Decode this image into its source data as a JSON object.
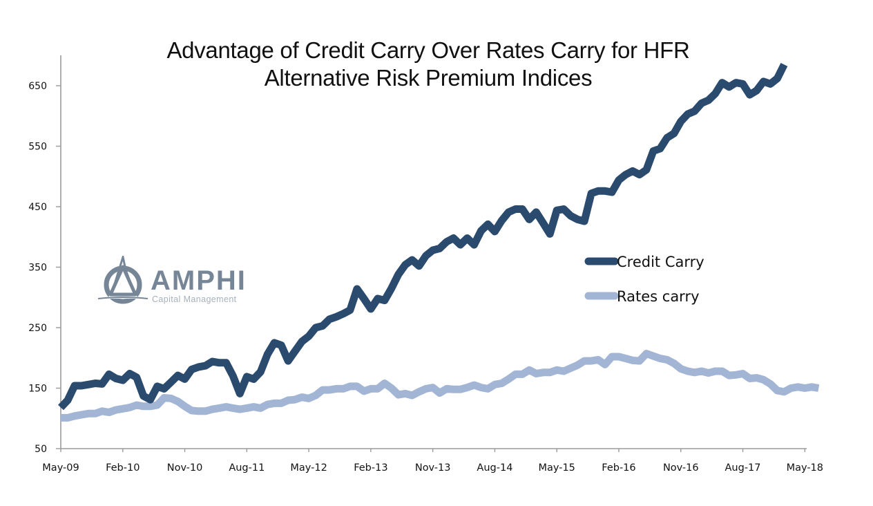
{
  "chart_data": {
    "type": "line",
    "title": "Advantage of Credit Carry Over Rates Carry for HFR Alternative Risk Premium Indices",
    "title_lines": [
      "Advantage of Credit Carry Over Rates Carry for HFR",
      "Alternative Risk Premium Indices"
    ],
    "xlabel": "",
    "ylabel": "",
    "ylim": [
      50,
      700
    ],
    "y_ticks": [
      50,
      150,
      250,
      350,
      450,
      550,
      650
    ],
    "x_start": "May-09",
    "x_unit": "month",
    "x_ticks": [
      {
        "label": "May-09",
        "month_index": 0
      },
      {
        "label": "Feb-10",
        "month_index": 9
      },
      {
        "label": "Nov-10",
        "month_index": 18
      },
      {
        "label": "Aug-11",
        "month_index": 27
      },
      {
        "label": "May-12",
        "month_index": 36
      },
      {
        "label": "Feb-13",
        "month_index": 45
      },
      {
        "label": "Nov-13",
        "month_index": 54
      },
      {
        "label": "Aug-14",
        "month_index": 63
      },
      {
        "label": "May-15",
        "month_index": 72
      },
      {
        "label": "Feb-16",
        "month_index": 81
      },
      {
        "label": "Nov-16",
        "month_index": 90
      },
      {
        "label": "Aug-17",
        "month_index": 99
      },
      {
        "label": "May-18",
        "month_index": 108
      }
    ],
    "grid": false,
    "legend": {
      "position": "right-center"
    },
    "series": [
      {
        "name": "Credit Carry",
        "color": "#2a4a6e",
        "points": [
          [
            0,
            118
          ],
          [
            1,
            130
          ],
          [
            2,
            154
          ],
          [
            3,
            154
          ],
          [
            4,
            156
          ],
          [
            5,
            158
          ],
          [
            6,
            157
          ],
          [
            7,
            173
          ],
          [
            8,
            166
          ],
          [
            9,
            163
          ],
          [
            10,
            174
          ],
          [
            11,
            168
          ],
          [
            12,
            137
          ],
          [
            13,
            131
          ],
          [
            14,
            153
          ],
          [
            15,
            149
          ],
          [
            16,
            160
          ],
          [
            17,
            171
          ],
          [
            18,
            165
          ],
          [
            19,
            181
          ],
          [
            20,
            185
          ],
          [
            21,
            187
          ],
          [
            22,
            194
          ],
          [
            23,
            192
          ],
          [
            24,
            192
          ],
          [
            25,
            170
          ],
          [
            26,
            141
          ],
          [
            27,
            169
          ],
          [
            28,
            165
          ],
          [
            29,
            177
          ],
          [
            30,
            206
          ],
          [
            31,
            225
          ],
          [
            32,
            221
          ],
          [
            33,
            195
          ],
          [
            34,
            211
          ],
          [
            35,
            227
          ],
          [
            36,
            236
          ],
          [
            37,
            250
          ],
          [
            38,
            253
          ],
          [
            39,
            264
          ],
          [
            40,
            268
          ],
          [
            41,
            273
          ],
          [
            42,
            279
          ],
          [
            43,
            314
          ],
          [
            44,
            298
          ],
          [
            45,
            281
          ],
          [
            46,
            298
          ],
          [
            47,
            295
          ],
          [
            48,
            315
          ],
          [
            49,
            338
          ],
          [
            50,
            354
          ],
          [
            51,
            362
          ],
          [
            52,
            352
          ],
          [
            53,
            369
          ],
          [
            54,
            378
          ],
          [
            55,
            381
          ],
          [
            56,
            392
          ],
          [
            57,
            398
          ],
          [
            58,
            387
          ],
          [
            59,
            398
          ],
          [
            60,
            387
          ],
          [
            61,
            410
          ],
          [
            62,
            421
          ],
          [
            63,
            409
          ],
          [
            64,
            427
          ],
          [
            65,
            441
          ],
          [
            66,
            446
          ],
          [
            67,
            446
          ],
          [
            68,
            429
          ],
          [
            69,
            441
          ],
          [
            70,
            423
          ],
          [
            71,
            405
          ],
          [
            72,
            444
          ],
          [
            73,
            446
          ],
          [
            74,
            435
          ],
          [
            75,
            429
          ],
          [
            76,
            426
          ],
          [
            77,
            472
          ],
          [
            78,
            476
          ],
          [
            79,
            476
          ],
          [
            80,
            474
          ],
          [
            81,
            494
          ],
          [
            82,
            503
          ],
          [
            83,
            509
          ],
          [
            84,
            503
          ],
          [
            85,
            511
          ],
          [
            86,
            542
          ],
          [
            87,
            546
          ],
          [
            88,
            564
          ],
          [
            89,
            571
          ],
          [
            90,
            591
          ],
          [
            91,
            603
          ],
          [
            92,
            608
          ],
          [
            93,
            621
          ],
          [
            94,
            626
          ],
          [
            95,
            637
          ],
          [
            96,
            655
          ],
          [
            97,
            648
          ],
          [
            98,
            655
          ],
          [
            99,
            653
          ],
          [
            100,
            635
          ],
          [
            101,
            642
          ],
          [
            102,
            657
          ],
          [
            103,
            653
          ],
          [
            104,
            662
          ],
          [
            105,
            685
          ]
        ]
      },
      {
        "name": "Rates carry",
        "color": "#a3b5d4",
        "points": [
          [
            0,
            101
          ],
          [
            1,
            101
          ],
          [
            2,
            104
          ],
          [
            3,
            106
          ],
          [
            4,
            108
          ],
          [
            5,
            108
          ],
          [
            6,
            112
          ],
          [
            7,
            110
          ],
          [
            8,
            114
          ],
          [
            9,
            116
          ],
          [
            10,
            118
          ],
          [
            11,
            122
          ],
          [
            12,
            120
          ],
          [
            13,
            120
          ],
          [
            14,
            122
          ],
          [
            15,
            134
          ],
          [
            16,
            133
          ],
          [
            17,
            128
          ],
          [
            18,
            120
          ],
          [
            19,
            113
          ],
          [
            20,
            112
          ],
          [
            21,
            112
          ],
          [
            22,
            115
          ],
          [
            23,
            117
          ],
          [
            24,
            119
          ],
          [
            25,
            117
          ],
          [
            26,
            115
          ],
          [
            27,
            117
          ],
          [
            28,
            119
          ],
          [
            29,
            117
          ],
          [
            30,
            123
          ],
          [
            31,
            125
          ],
          [
            32,
            125
          ],
          [
            33,
            130
          ],
          [
            34,
            131
          ],
          [
            35,
            135
          ],
          [
            36,
            133
          ],
          [
            37,
            138
          ],
          [
            38,
            147
          ],
          [
            39,
            147
          ],
          [
            40,
            149
          ],
          [
            41,
            149
          ],
          [
            42,
            153
          ],
          [
            43,
            153
          ],
          [
            44,
            145
          ],
          [
            45,
            149
          ],
          [
            46,
            149
          ],
          [
            47,
            158
          ],
          [
            48,
            150
          ],
          [
            49,
            139
          ],
          [
            50,
            141
          ],
          [
            51,
            138
          ],
          [
            52,
            144
          ],
          [
            53,
            149
          ],
          [
            54,
            151
          ],
          [
            55,
            142
          ],
          [
            56,
            149
          ],
          [
            57,
            148
          ],
          [
            58,
            148
          ],
          [
            59,
            151
          ],
          [
            60,
            155
          ],
          [
            61,
            151
          ],
          [
            62,
            149
          ],
          [
            63,
            156
          ],
          [
            64,
            158
          ],
          [
            65,
            165
          ],
          [
            66,
            173
          ],
          [
            67,
            173
          ],
          [
            68,
            180
          ],
          [
            69,
            174
          ],
          [
            70,
            176
          ],
          [
            71,
            176
          ],
          [
            72,
            180
          ],
          [
            73,
            178
          ],
          [
            74,
            183
          ],
          [
            75,
            188
          ],
          [
            76,
            195
          ],
          [
            77,
            195
          ],
          [
            78,
            197
          ],
          [
            79,
            189
          ],
          [
            80,
            202
          ],
          [
            81,
            202
          ],
          [
            82,
            199
          ],
          [
            83,
            196
          ],
          [
            84,
            195
          ],
          [
            85,
            207
          ],
          [
            86,
            203
          ],
          [
            87,
            199
          ],
          [
            88,
            197
          ],
          [
            89,
            191
          ],
          [
            90,
            182
          ],
          [
            91,
            178
          ],
          [
            92,
            176
          ],
          [
            93,
            178
          ],
          [
            94,
            175
          ],
          [
            95,
            178
          ],
          [
            96,
            178
          ],
          [
            97,
            171
          ],
          [
            98,
            172
          ],
          [
            99,
            174
          ],
          [
            100,
            166
          ],
          [
            101,
            167
          ],
          [
            102,
            164
          ],
          [
            103,
            157
          ],
          [
            104,
            146
          ],
          [
            105,
            144
          ],
          [
            106,
            150
          ],
          [
            107,
            152
          ],
          [
            108,
            150
          ],
          [
            109,
            152
          ],
          [
            110,
            150
          ]
        ]
      }
    ]
  },
  "logo": {
    "name": "AMPHI",
    "subtitle": "Capital Management"
  }
}
